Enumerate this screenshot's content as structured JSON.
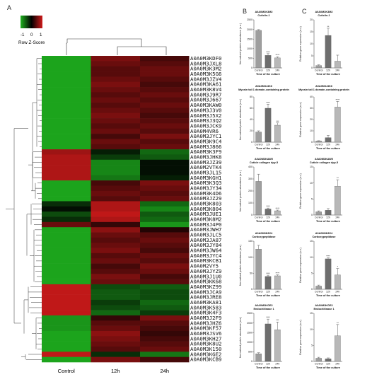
{
  "panels": {
    "a": "A",
    "b": "B",
    "c": "C"
  },
  "legend": {
    "title": "Row Z-Score",
    "ticks": [
      "-1",
      "0",
      "1"
    ],
    "colors": {
      "low": "#1fb31f",
      "mid": "#000000",
      "high": "#d11a1a"
    }
  },
  "chart_data": [
    {
      "type": "heatmap",
      "columns": [
        "Control",
        "12h",
        "24h"
      ],
      "rows": [
        "A0A0M3KDF0",
        "A0A0M3JXL8",
        "A0A0M3K3M2",
        "A0A0M3K5G6",
        "A0A0M3JZV4",
        "A0A0M3KA61",
        "A0A0M3K8V4",
        "A0A0M3J9R7",
        "A0A0M3J667",
        "A0A0M3KAW0",
        "A0A0M3J3V0",
        "A0A0M3J5X2",
        "A0A0M3J3Q2",
        "A0A0M3JCK9",
        "A0A0M4VR6",
        "A0A0M3JYC1",
        "A0A0M3K9C4",
        "A0A0M3J866",
        "A0A0M3K3F9",
        "A0A0M3JHK8",
        "A0A0M3JZ39",
        "A0A0M2VTK4",
        "A0A0M3JL15",
        "A0A0M3KGH1",
        "A0A0M3K3Q3",
        "A0A0M3JY34",
        "A0A0M3K4D6",
        "A0A0M3JZ29",
        "A0A0M3K803",
        "A0A0M3K804",
        "A0A0M3JUE1",
        "A0A0M3K8M2",
        "A0A0M3J4P0",
        "A0A0M3JWH7",
        "A0A0M3JLC5",
        "A0A0M3JA87",
        "A0A0M3JY84",
        "A0A0M3JW64",
        "A0A0M3JYC4",
        "A0A0M3KCB1",
        "A0A0M2VY5",
        "A0A0M3JYZ9",
        "A0A0M3J1U0",
        "A0A0M3KK68",
        "A0A0M3KZ99",
        "A0A0M3JCA9",
        "A0A0M3JRE8",
        "A0A0M3KA81",
        "A0A0M3K583",
        "A0A0M3K4F3",
        "A0A0M3J2F9",
        "A0A0M3JHZ6",
        "A0A0M3KF57",
        "A0A0M3JSV6",
        "A0A0M3KH27",
        "A0A0M3K8U2",
        "A0A0M3K150",
        "A0A0M3KGE2",
        "A0A0M3KCB9"
      ],
      "values": [
        [
          -1.1,
          0.7,
          0.4
        ],
        [
          -1.1,
          0.6,
          0.5
        ],
        [
          -1.1,
          0.5,
          0.6
        ],
        [
          -1.1,
          0.5,
          0.6
        ],
        [
          -1.1,
          0.6,
          0.5
        ],
        [
          -1.1,
          0.7,
          0.4
        ],
        [
          -1.1,
          0.6,
          0.5
        ],
        [
          -1.1,
          0.5,
          0.6
        ],
        [
          -1.1,
          0.6,
          0.5
        ],
        [
          -1.1,
          0.5,
          0.6
        ],
        [
          -1.1,
          0.6,
          0.5
        ],
        [
          -1.1,
          0.7,
          0.4
        ],
        [
          -1.1,
          0.6,
          0.5
        ],
        [
          -1.1,
          0.5,
          0.6
        ],
        [
          -1.1,
          0.6,
          0.5
        ],
        [
          -1.1,
          0.4,
          0.7
        ],
        [
          -1.1,
          0.6,
          0.5
        ],
        [
          -1.1,
          0.5,
          0.6
        ],
        [
          0.9,
          -0.2,
          -0.7
        ],
        [
          1.0,
          -0.4,
          -0.6
        ],
        [
          1.0,
          -0.9,
          -0.1
        ],
        [
          1.0,
          -0.9,
          -0.1
        ],
        [
          1.0,
          -0.9,
          -0.1
        ],
        [
          1.0,
          -0.8,
          -0.2
        ],
        [
          -1.1,
          0.4,
          0.7
        ],
        [
          -1.1,
          0.5,
          0.6
        ],
        [
          -1.1,
          0.6,
          0.5
        ],
        [
          -1.1,
          0.5,
          0.6
        ],
        [
          -0.3,
          1.0,
          -0.7
        ],
        [
          -0.1,
          1.0,
          -0.9
        ],
        [
          -0.5,
          1.1,
          -0.6
        ],
        [
          -0.3,
          1.0,
          -0.7
        ],
        [
          0.6,
          0.3,
          -1.0
        ],
        [
          -1.1,
          0.8,
          0.2
        ],
        [
          -1.1,
          0.6,
          0.5
        ],
        [
          -1.1,
          0.5,
          0.6
        ],
        [
          -1.1,
          0.6,
          0.5
        ],
        [
          -1.1,
          0.7,
          0.4
        ],
        [
          -1.1,
          0.5,
          0.6
        ],
        [
          -1.1,
          0.6,
          0.5
        ],
        [
          -1.1,
          0.4,
          0.7
        ],
        [
          -1.1,
          0.5,
          0.6
        ],
        [
          -1.1,
          0.7,
          0.4
        ],
        [
          -1.1,
          0.6,
          0.5
        ],
        [
          1.1,
          -0.5,
          -0.6
        ],
        [
          1.1,
          -0.6,
          -0.5
        ],
        [
          1.1,
          -0.6,
          -0.5
        ],
        [
          1.1,
          -0.4,
          -0.7
        ],
        [
          1.1,
          -0.5,
          -0.6
        ],
        [
          1.1,
          -0.7,
          -0.4
        ],
        [
          -1.0,
          0.3,
          0.7
        ],
        [
          -1.0,
          0.5,
          0.5
        ],
        [
          -1.0,
          0.6,
          0.4
        ],
        [
          -1.1,
          0.8,
          0.3
        ],
        [
          -1.1,
          0.7,
          0.4
        ],
        [
          -1.1,
          0.6,
          0.5
        ],
        [
          -1.1,
          0.5,
          0.6
        ],
        [
          1.1,
          -0.3,
          -0.8
        ],
        [
          -1.1,
          0.7,
          0.4
        ]
      ]
    },
    {
      "panel": "B",
      "type": "bar",
      "title": "A0A0M3K3M2",
      "subtitle": "Cuticlin-1",
      "ylabel": "Normalized protein abundance (a.u.)",
      "xlabel": "Time of the culture",
      "categories": [
        "Control",
        "12h",
        "24h"
      ],
      "ylim": [
        0,
        2500
      ],
      "ticks": [
        0,
        500,
        1000,
        1500,
        2000,
        2500
      ],
      "values": [
        1950,
        650,
        520
      ],
      "errors": [
        40,
        90,
        60
      ],
      "sig": [
        "",
        "****",
        "****"
      ]
    },
    {
      "panel": "B",
      "type": "bar",
      "title": "A0A0M3J4K6",
      "subtitle": "Myosin tail 1 domain-containing protein",
      "ylabel": "Normalized protein abundance (a.u.)",
      "xlabel": "Time of the culture",
      "categories": [
        "Control",
        "12h",
        "24h"
      ],
      "ylim": [
        0,
        80
      ],
      "ticks": [
        0,
        20,
        40,
        60,
        80
      ],
      "values": [
        18,
        60,
        30
      ],
      "errors": [
        2,
        7,
        4
      ],
      "sig": [
        "",
        "****",
        "***"
      ]
    },
    {
      "panel": "B",
      "type": "bar",
      "title": "A0A0M3KAW0",
      "subtitle": "Cuticle collagen dpy-5",
      "ylabel": "Normalized protein abundance (a.u.)",
      "xlabel": "Time of the culture",
      "categories": [
        "Control",
        "12h",
        "24h"
      ],
      "ylim": [
        0,
        400
      ],
      "ticks": [
        0,
        100,
        200,
        300,
        400
      ],
      "values": [
        280,
        50,
        35
      ],
      "errors": [
        60,
        8,
        6
      ],
      "sig": [
        "",
        "****",
        "****"
      ]
    },
    {
      "panel": "B",
      "type": "bar",
      "title": "A0A0M3K8V4",
      "subtitle": "Carboxypeptidase",
      "ylabel": "Normalized protein abundance (a.u.)",
      "xlabel": "Time of the culture",
      "categories": [
        "Control",
        "12h",
        "24h"
      ],
      "ylim": [
        0,
        150
      ],
      "ticks": [
        0,
        50,
        100,
        150
      ],
      "values": [
        125,
        40,
        42
      ],
      "errors": [
        12,
        4,
        3
      ],
      "sig": [
        "",
        "****",
        "****"
      ]
    },
    {
      "panel": "B",
      "type": "bar",
      "title": "A0A0M3KGE2",
      "subtitle": "Endochitinase 1",
      "ylabel": "Normalized protein abundance (a.u.)",
      "xlabel": "Time of the culture",
      "categories": [
        "Control",
        "12h",
        "24h"
      ],
      "ylim": [
        0,
        2500
      ],
      "ticks": [
        0,
        500,
        1000,
        1500,
        2000,
        2500
      ],
      "values": [
        400,
        1950,
        1650
      ],
      "errors": [
        50,
        250,
        400
      ],
      "sig": [
        "",
        "****",
        "***"
      ]
    },
    {
      "panel": "C",
      "type": "bar",
      "title": "A0A0M3K3M2",
      "subtitle": "Cuticlin-1",
      "ylabel": "Relative gene expression (a.u.)",
      "xlabel": "Time of the culture",
      "categories": [
        "Control",
        "12h",
        "24h"
      ],
      "ylim": [
        0,
        20
      ],
      "ticks": [
        0,
        5,
        10,
        15,
        20
      ],
      "values": [
        1,
        13.5,
        2.8
      ],
      "errors": [
        0.3,
        3.0,
        2.5
      ],
      "sig": [
        "",
        "**",
        ""
      ]
    },
    {
      "panel": "C",
      "type": "bar",
      "title": "A0A0M3J4K6",
      "subtitle": "Myosin tail 1 domain-containing protein",
      "ylabel": "Relative gene expression (a.u.)",
      "xlabel": "Time of the culture",
      "categories": [
        "Control",
        "12h",
        "24h"
      ],
      "ylim": [
        0,
        40
      ],
      "ticks": [
        0,
        10,
        20,
        30,
        40
      ],
      "values": [
        1,
        4,
        31
      ],
      "errors": [
        0.3,
        2.0,
        5.0
      ],
      "sig": [
        "",
        "",
        "****"
      ]
    },
    {
      "panel": "C",
      "type": "bar",
      "title": "A0A0M3KAW0",
      "subtitle": "Cuticle collagen dpy-5",
      "ylabel": "Relative gene expression (a.u.)",
      "xlabel": "Time of the culture",
      "categories": [
        "Control",
        "12h",
        "24h"
      ],
      "ylim": [
        0,
        15
      ],
      "ticks": [
        0,
        5,
        10,
        15
      ],
      "values": [
        1,
        1.5,
        9
      ],
      "errors": [
        0.3,
        0.5,
        2.0
      ],
      "sig": [
        "",
        "",
        "**"
      ]
    },
    {
      "panel": "C",
      "type": "bar",
      "title": "A0A0M3K8V4",
      "subtitle": "Carboxypeptidase",
      "ylabel": "Relative gene expression (a.u.)",
      "xlabel": "Time of the culture",
      "categories": [
        "Control",
        "12h",
        "24h"
      ],
      "ylim": [
        0,
        15
      ],
      "ticks": [
        0,
        5,
        10,
        15
      ],
      "values": [
        1,
        9.5,
        4.5
      ],
      "errors": [
        0.3,
        0.3,
        2.0
      ],
      "sig": [
        "",
        "****",
        "*"
      ]
    },
    {
      "panel": "C",
      "type": "bar",
      "title": "A0A0M3KGE2",
      "subtitle": "Endochitinase 1",
      "ylabel": "Relative gene expression (a.u.)",
      "xlabel": "Time of the culture",
      "categories": [
        "Control",
        "12h",
        "24h"
      ],
      "ylim": [
        0,
        15
      ],
      "ticks": [
        0,
        5,
        10,
        15
      ],
      "values": [
        1,
        0.8,
        8
      ],
      "errors": [
        0.3,
        0.3,
        3.5
      ],
      "sig": [
        "",
        "",
        "**"
      ]
    }
  ]
}
